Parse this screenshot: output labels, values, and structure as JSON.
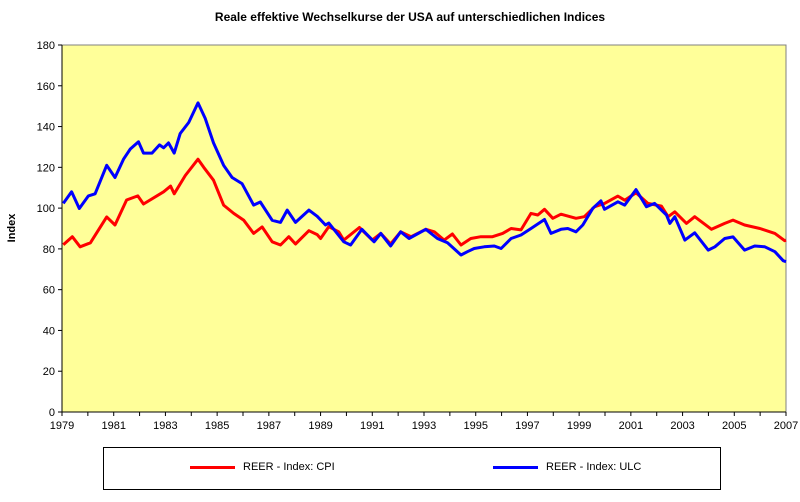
{
  "chart_data": {
    "type": "line",
    "title": "Reale effektive Wechselkurse der USA auf unterschiedlichen Indices",
    "xlabel": "",
    "ylabel": "Index",
    "xlim": [
      1979,
      2007
    ],
    "ylim": [
      0,
      180
    ],
    "x_ticks": [
      "1979",
      "1981",
      "1983",
      "1985",
      "1987",
      "1989",
      "1991",
      "1993",
      "1995",
      "1997",
      "1999",
      "2001",
      "2003",
      "2005",
      "2007"
    ],
    "y_ticks": [
      "0",
      "20",
      "40",
      "60",
      "80",
      "100",
      "120",
      "140",
      "160",
      "180"
    ],
    "grid": false,
    "plot_background": "#FFFF99",
    "legend_position": "bottom",
    "series": [
      {
        "name": "REER - Index: CPI",
        "color": "#FF0000",
        "x": [
          1979.05,
          1979.4,
          1979.7,
          1980.1,
          1980.73,
          1981.05,
          1981.5,
          1981.93,
          1982.15,
          1982.93,
          1983.2,
          1983.34,
          1983.77,
          1984.26,
          1984.48,
          1984.86,
          1985.25,
          1985.64,
          1986.03,
          1986.41,
          1986.74,
          1987.13,
          1987.45,
          1987.77,
          1988.03,
          1988.55,
          1988.87,
          1989.0,
          1989.32,
          1989.7,
          1989.9,
          1990.5,
          1991.0,
          1991.33,
          1991.71,
          1992.1,
          1992.5,
          1993.07,
          1993.4,
          1993.78,
          1994.1,
          1994.43,
          1994.81,
          1995.2,
          1995.65,
          1996.04,
          1996.37,
          1996.75,
          1997.14,
          1997.4,
          1997.66,
          1997.98,
          1998.3,
          1998.88,
          1999.2,
          1999.6,
          1999.98,
          2000.5,
          2000.76,
          2001.2,
          2001.66,
          2002.18,
          2002.44,
          2002.7,
          2003.15,
          2003.47,
          2004.12,
          2004.63,
          2004.95,
          2005.4,
          2005.99,
          2006.57,
          2006.95,
          2007.0
        ],
        "y": [
          82,
          86,
          81,
          83,
          95.7,
          91.7,
          104,
          106,
          102,
          108,
          110.8,
          107,
          116,
          124,
          120,
          113.7,
          101.5,
          97.4,
          94,
          87.6,
          90.8,
          83.5,
          81.9,
          86,
          82.4,
          88.9,
          87,
          85.1,
          90.9,
          88.4,
          84.3,
          90.5,
          84.3,
          87.6,
          82.4,
          88.4,
          86,
          89.6,
          88.4,
          84.3,
          87.3,
          81.9,
          85.1,
          86,
          86,
          87.6,
          90,
          89.3,
          97.4,
          96.6,
          99.4,
          95,
          97,
          95,
          95.8,
          100.7,
          102.3,
          105.9,
          103.9,
          107.5,
          102.3,
          101,
          95.8,
          98.2,
          92.5,
          95.8,
          89.6,
          92.5,
          94.1,
          91.7,
          90,
          87.6,
          84,
          84.3
        ]
      },
      {
        "name": "REER - Index: ULC",
        "color": "#0000FF",
        "x": [
          1979.05,
          1979.37,
          1979.67,
          1980.02,
          1980.28,
          1980.73,
          1981.05,
          1981.38,
          1981.64,
          1981.96,
          1982.15,
          1982.48,
          1982.77,
          1982.93,
          1983.12,
          1983.34,
          1983.57,
          1983.9,
          1984.26,
          1984.54,
          1984.86,
          1985.25,
          1985.58,
          1985.96,
          1986.41,
          1986.67,
          1987.13,
          1987.45,
          1987.71,
          1988.03,
          1988.55,
          1988.87,
          1989.19,
          1989.32,
          1989.9,
          1990.16,
          1990.6,
          1991.07,
          1991.33,
          1991.71,
          1992.1,
          1992.42,
          1993.07,
          1993.52,
          1993.91,
          1994.43,
          1994.68,
          1994.94,
          1995.33,
          1995.72,
          1995.98,
          1996.37,
          1996.75,
          1997.14,
          1997.66,
          1997.91,
          1998.3,
          1998.56,
          1998.88,
          1999.14,
          1999.53,
          1999.84,
          1999.98,
          2000.5,
          2000.76,
          2001.2,
          2001.6,
          2001.92,
          2002.38,
          2002.51,
          2002.7,
          2003.09,
          2003.47,
          2003.99,
          2004.25,
          2004.63,
          2004.95,
          2005.4,
          2005.79,
          2006.18,
          2006.57,
          2006.89,
          2007.0
        ],
        "y": [
          102.3,
          108,
          99.8,
          106,
          107,
          121,
          115,
          124,
          129,
          132.5,
          127,
          127,
          131,
          129.6,
          132,
          127,
          136.6,
          142,
          151.6,
          144,
          132,
          121,
          115,
          112,
          101.5,
          103,
          94,
          93,
          99,
          93,
          99,
          96,
          91.7,
          92.7,
          83.5,
          81.9,
          89.6,
          83.5,
          87.6,
          81.4,
          88.4,
          85.1,
          89.6,
          85.1,
          83,
          77,
          78.6,
          80.2,
          81,
          81.4,
          80.2,
          85.1,
          86.8,
          90,
          94.4,
          87.6,
          89.6,
          90,
          88.4,
          91.7,
          99.9,
          103.6,
          99.4,
          103.1,
          101.5,
          109.1,
          100.7,
          102.3,
          96.6,
          92.5,
          95.8,
          84.3,
          87.9,
          79.4,
          81,
          85.1,
          85.9,
          79.4,
          81.4,
          81,
          78.6,
          74.2,
          73.7
        ]
      }
    ]
  }
}
